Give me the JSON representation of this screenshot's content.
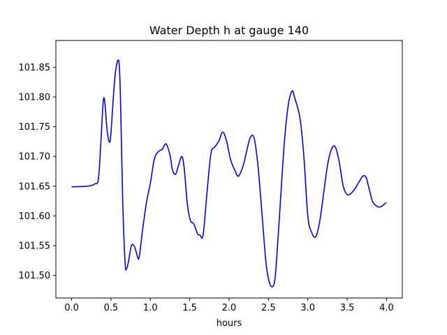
{
  "chart_data": {
    "type": "line",
    "title": "Water Depth h at gauge 140",
    "xlabel": "hours",
    "ylabel": "",
    "xlim": [
      -0.2,
      4.2
    ],
    "ylim": [
      101.462,
      101.895
    ],
    "x_ticks": [
      0.0,
      0.5,
      1.0,
      1.5,
      2.0,
      2.5,
      3.0,
      3.5,
      4.0
    ],
    "x_tick_labels": [
      "0.0",
      "0.5",
      "1.0",
      "1.5",
      "2.0",
      "2.5",
      "3.0",
      "3.5",
      "4.0"
    ],
    "y_ticks": [
      101.5,
      101.55,
      101.6,
      101.65,
      101.7,
      101.75,
      101.8,
      101.85
    ],
    "y_tick_labels": [
      "101.50",
      "101.55",
      "101.60",
      "101.65",
      "101.70",
      "101.75",
      "101.80",
      "101.85"
    ],
    "grid": false,
    "line_color": "#0000ee",
    "series": [
      {
        "x": [
          0.0,
          0.2,
          0.3,
          0.34,
          0.37,
          0.4,
          0.42,
          0.45,
          0.48,
          0.5,
          0.53,
          0.56,
          0.6,
          0.62,
          0.65,
          0.68,
          0.7,
          0.72,
          0.76,
          0.8,
          0.84,
          0.86,
          0.9,
          0.95,
          1.0,
          1.05,
          1.1,
          1.15,
          1.2,
          1.25,
          1.28,
          1.32,
          1.36,
          1.4,
          1.43,
          1.47,
          1.51,
          1.55,
          1.6,
          1.63,
          1.67,
          1.72,
          1.77,
          1.82,
          1.87,
          1.92,
          1.97,
          2.02,
          2.08,
          2.12,
          2.18,
          2.22,
          2.27,
          2.32,
          2.37,
          2.42,
          2.47,
          2.52,
          2.57,
          2.6,
          2.65,
          2.7,
          2.75,
          2.8,
          2.83,
          2.9,
          2.95,
          3.0,
          3.05,
          3.1,
          3.15,
          3.2,
          3.25,
          3.3,
          3.35,
          3.4,
          3.45,
          3.5,
          3.55,
          3.6,
          3.65,
          3.7,
          3.74,
          3.78,
          3.82,
          3.86,
          3.9,
          3.95,
          3.98,
          4.0
        ],
        "y": [
          101.649,
          101.65,
          101.654,
          101.662,
          101.72,
          101.79,
          101.793,
          101.745,
          101.724,
          101.74,
          101.8,
          101.845,
          101.86,
          101.8,
          101.62,
          101.52,
          101.512,
          101.522,
          101.55,
          101.548,
          101.53,
          101.532,
          101.575,
          101.622,
          101.655,
          101.695,
          101.708,
          101.712,
          101.721,
          101.702,
          101.678,
          101.67,
          101.686,
          101.7,
          101.68,
          101.62,
          101.592,
          101.587,
          101.57,
          101.568,
          101.568,
          101.64,
          101.705,
          101.716,
          101.726,
          101.741,
          101.725,
          101.694,
          101.675,
          101.667,
          101.685,
          101.707,
          101.732,
          101.73,
          101.68,
          101.6,
          101.52,
          101.485,
          101.485,
          101.52,
          101.62,
          101.72,
          101.785,
          101.81,
          101.8,
          101.765,
          101.7,
          101.6,
          101.572,
          101.565,
          101.59,
          101.637,
          101.685,
          101.712,
          101.716,
          101.69,
          101.65,
          101.636,
          101.638,
          101.646,
          101.657,
          101.667,
          101.665,
          101.645,
          101.625,
          101.618,
          101.615,
          101.617,
          101.621,
          101.622
        ]
      }
    ]
  }
}
